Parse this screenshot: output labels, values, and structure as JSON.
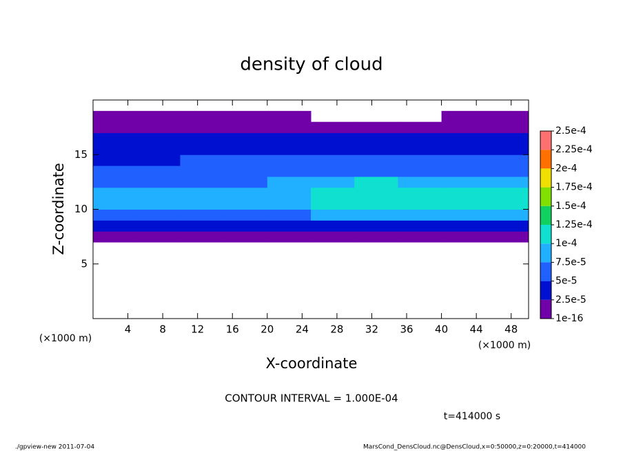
{
  "chart_data": {
    "type": "heatmap",
    "title": "density of cloud",
    "x_label": "X-coordinate",
    "y_label": "Z-coordinate",
    "x_unit": "(×1000 m)",
    "y_unit": "(×1000 m)",
    "contour_note": "CONTOUR INTERVAL = 1.000E-04",
    "time_note": "t=414000 s",
    "footer_left": "./gpview-new  2011-07-04",
    "footer_right": "MarsCond_DensCloud.nc@DensCloud,x=0:50000,z=0:20000,t=414000",
    "xlim": [
      0,
      50
    ],
    "ylim": [
      0,
      20
    ],
    "xticks": [
      4,
      8,
      12,
      16,
      20,
      24,
      28,
      32,
      36,
      40,
      44,
      48
    ],
    "yticks": [
      5,
      10,
      15
    ],
    "x": [
      2.5,
      7.5,
      12.5,
      17.5,
      22.5,
      27.5,
      32.5,
      37.5,
      42.5,
      47.5
    ],
    "y": [
      0.5,
      1.5,
      2.5,
      3.5,
      4.5,
      5.5,
      6.5,
      7.5,
      8.5,
      9.5,
      10.5,
      11.5,
      12.5,
      13.5,
      14.5,
      15.5,
      16.5,
      17.5,
      18.5,
      19.5
    ],
    "values": [
      [
        null,
        null,
        null,
        null,
        null,
        null,
        null,
        null,
        null,
        null
      ],
      [
        null,
        null,
        null,
        null,
        null,
        null,
        null,
        null,
        null,
        null
      ],
      [
        null,
        null,
        null,
        null,
        null,
        null,
        null,
        null,
        null,
        null
      ],
      [
        null,
        null,
        null,
        null,
        null,
        null,
        null,
        null,
        null,
        null
      ],
      [
        null,
        null,
        null,
        null,
        null,
        null,
        null,
        null,
        null,
        null
      ],
      [
        null,
        null,
        null,
        null,
        null,
        null,
        null,
        null,
        null,
        null
      ],
      [
        null,
        null,
        null,
        null,
        null,
        null,
        null,
        null,
        null,
        null
      ],
      [
        2e-05,
        2e-05,
        2e-05,
        2e-05,
        2e-05,
        2e-05,
        2e-05,
        2e-05,
        2e-05,
        2e-05
      ],
      [
        4e-05,
        4e-05,
        4e-05,
        4e-05,
        4e-05,
        4e-05,
        4e-05,
        4e-05,
        4e-05,
        4e-05
      ],
      [
        7e-05,
        7e-05,
        7e-05,
        7e-05,
        7e-05,
        8e-05,
        8e-05,
        8e-05,
        8e-05,
        8e-05
      ],
      [
        9e-05,
        9e-05,
        9e-05,
        9e-05,
        9e-05,
        0.000105,
        0.00011,
        0.000105,
        0.000105,
        0.000105
      ],
      [
        8e-05,
        8e-05,
        8e-05,
        8e-05,
        9e-05,
        0.00011,
        0.00012,
        0.00011,
        0.00011,
        0.00011
      ],
      [
        6.5e-05,
        6.5e-05,
        7e-05,
        7e-05,
        8e-05,
        9e-05,
        0.0001,
        9.5e-05,
        9.5e-05,
        9.5e-05
      ],
      [
        5e-05,
        5e-05,
        6e-05,
        6e-05,
        6e-05,
        7e-05,
        7e-05,
        7e-05,
        7e-05,
        7e-05
      ],
      [
        4e-05,
        4e-05,
        5e-05,
        5e-05,
        5e-05,
        5.5e-05,
        5.5e-05,
        5.5e-05,
        5.5e-05,
        5.5e-05
      ],
      [
        3e-05,
        3e-05,
        3e-05,
        3e-05,
        3e-05,
        3e-05,
        3e-05,
        3e-05,
        3e-05,
        3e-05
      ],
      [
        2.6e-05,
        2.6e-05,
        2.6e-05,
        2.6e-05,
        2.6e-05,
        2.6e-05,
        2.6e-05,
        2.6e-05,
        2.6e-05,
        2.6e-05
      ],
      [
        1e-05,
        1e-05,
        1e-05,
        1e-05,
        1e-05,
        1e-05,
        1e-05,
        1e-05,
        1e-05,
        1e-05
      ],
      [
        5e-06,
        5e-06,
        5e-06,
        5e-06,
        5e-06,
        null,
        null,
        null,
        5e-06,
        5e-06
      ],
      [
        null,
        null,
        null,
        null,
        null,
        null,
        null,
        null,
        null,
        null
      ]
    ],
    "levels": [
      1e-16,
      {
        "value": 2.5e-05,
        "label": "2.5e-5"
      },
      {
        "value": 5e-05,
        "label": "5e-5"
      },
      {
        "value": 7.5e-05,
        "label": "7.5e-5"
      },
      {
        "value": 0.0001,
        "label": "1e-4"
      },
      {
        "value": 0.000125,
        "label": "1.25e-4"
      },
      {
        "value": 0.00015,
        "label": "1.5e-4"
      },
      {
        "value": 0.000175,
        "label": "1.75e-4"
      },
      {
        "value": 0.0002,
        "label": "2e-4"
      },
      {
        "value": 0.000225,
        "label": "2.25e-4"
      },
      {
        "value": 0.00025,
        "label": "2.5e-4"
      }
    ],
    "colors": [
      "#7000a8",
      "#0010d0",
      "#2060ff",
      "#20b0ff",
      "#10e0d0",
      "#10d060",
      "#80e000",
      "#f0e000",
      "#ff7000",
      "#ff7070"
    ]
  }
}
